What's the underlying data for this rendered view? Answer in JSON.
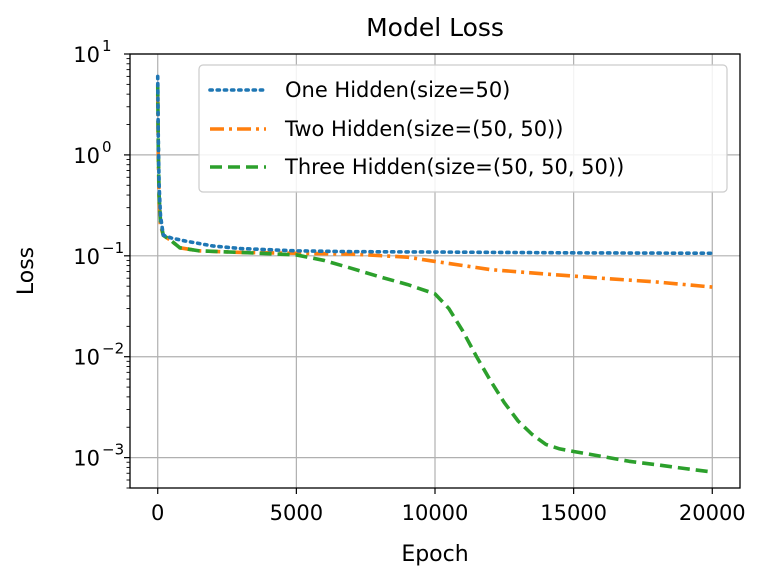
{
  "chart_data": {
    "type": "line",
    "title": "Model Loss",
    "xlabel": "Epoch",
    "ylabel": "Loss",
    "yscale": "log",
    "xlim": [
      -1000,
      21000
    ],
    "ylim": [
      0.0005,
      10
    ],
    "xticks": [
      0,
      5000,
      10000,
      15000,
      20000
    ],
    "xtick_labels": [
      "0",
      "5000",
      "10000",
      "15000",
      "20000"
    ],
    "yticks": [
      0.001,
      0.01,
      0.1,
      1,
      10
    ],
    "ytick_labels": [
      {
        "base": "10",
        "exp": "−3"
      },
      {
        "base": "10",
        "exp": "−2"
      },
      {
        "base": "10",
        "exp": "−1"
      },
      {
        "base": "10",
        "exp": "0"
      },
      {
        "base": "10",
        "exp": "1"
      }
    ],
    "grid": true,
    "legend_position": "top-right",
    "series": [
      {
        "name": "One Hidden(size=50)",
        "color": "#1f77b4",
        "dash": "dotted",
        "x": [
          0,
          20,
          50,
          100,
          200,
          500,
          1000,
          2000,
          3000,
          5000,
          7000,
          10000,
          15000,
          20000
        ],
        "y": [
          6.0,
          1.5,
          0.5,
          0.25,
          0.16,
          0.15,
          0.14,
          0.125,
          0.118,
          0.112,
          0.11,
          0.109,
          0.107,
          0.106
        ]
      },
      {
        "name": "Two Hidden(size=(50, 50))",
        "color": "#ff7f0e",
        "dash": "dashdot",
        "x": [
          0,
          20,
          50,
          100,
          200,
          500,
          800,
          1500,
          3000,
          5000,
          7000,
          9000,
          10000,
          12000,
          14000,
          16000,
          18000,
          20000
        ],
        "y": [
          4.0,
          1.0,
          0.35,
          0.2,
          0.16,
          0.14,
          0.12,
          0.112,
          0.108,
          0.106,
          0.104,
          0.097,
          0.088,
          0.073,
          0.066,
          0.06,
          0.055,
          0.049
        ]
      },
      {
        "name": "Three Hidden(size=(50, 50, 50))",
        "color": "#2ca02c",
        "dash": "dashed",
        "x": [
          0,
          20,
          50,
          100,
          200,
          500,
          800,
          1500,
          3000,
          5000,
          6000,
          7000,
          8000,
          9000,
          10000,
          10500,
          11000,
          11500,
          12000,
          12500,
          13000,
          13500,
          14000,
          14500,
          15000,
          16000,
          17000,
          18000,
          19000,
          20000
        ],
        "y": [
          5.0,
          1.2,
          0.4,
          0.22,
          0.16,
          0.14,
          0.12,
          0.112,
          0.108,
          0.102,
          0.09,
          0.075,
          0.062,
          0.052,
          0.042,
          0.03,
          0.018,
          0.01,
          0.0058,
          0.0035,
          0.0023,
          0.0017,
          0.00135,
          0.00122,
          0.00115,
          0.00103,
          0.00092,
          0.00085,
          0.00078,
          0.00072
        ]
      }
    ]
  }
}
